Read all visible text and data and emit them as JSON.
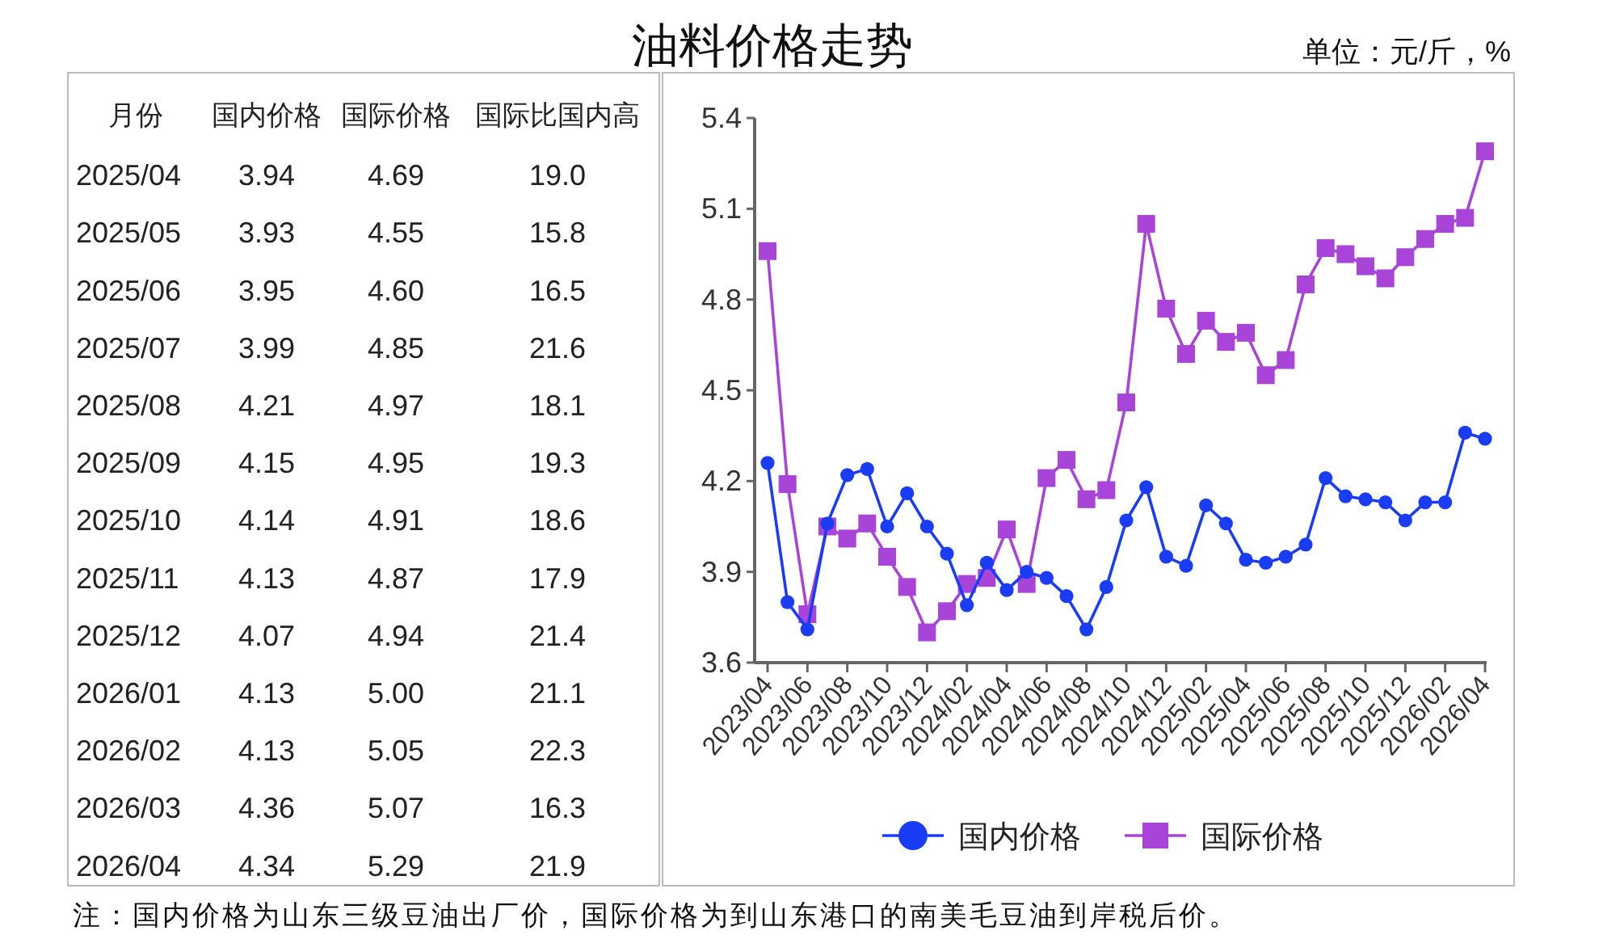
{
  "chart_data": [
    {
      "type": "other",
      "xlabel": "月份",
      "categories": [
        "2025/04",
        "2025/05",
        "2025/06",
        "2025/07",
        "2025/08",
        "2025/09",
        "2025/10",
        "2025/11",
        "2025/12",
        "2026/01",
        "2026/02",
        "2026/03",
        "2026/04"
      ],
      "series": [
        {
          "name": "国内价格",
          "values": [
            3.94,
            3.93,
            3.95,
            3.99,
            4.21,
            4.15,
            4.14,
            4.13,
            4.07,
            4.13,
            4.13,
            4.36,
            4.34
          ],
          "value_labels": [
            "3.94",
            "3.93",
            "3.95",
            "3.99",
            "4.21",
            "4.15",
            "4.14",
            "4.13",
            "4.07",
            "4.13",
            "4.13",
            "4.36",
            "4.34"
          ]
        },
        {
          "name": "国际价格",
          "values": [
            4.69,
            4.55,
            4.6,
            4.85,
            4.97,
            4.95,
            4.91,
            4.87,
            4.94,
            5.0,
            5.05,
            5.07,
            5.29
          ],
          "value_labels": [
            "4.69",
            "4.55",
            "4.60",
            "4.85",
            "4.97",
            "4.95",
            "4.91",
            "4.87",
            "4.94",
            "5.00",
            "5.05",
            "5.07",
            "5.29"
          ]
        },
        {
          "name": "国际比国内高",
          "values": [
            19.0,
            15.8,
            16.5,
            21.6,
            18.1,
            19.3,
            18.6,
            17.9,
            21.4,
            21.1,
            22.3,
            16.3,
            21.9
          ],
          "value_labels": [
            "19.0",
            "15.8",
            "16.5",
            "21.6",
            "18.1",
            "19.3",
            "18.6",
            "17.9",
            "21.4",
            "21.1",
            "22.3",
            "16.3",
            "21.9"
          ]
        }
      ]
    },
    {
      "type": "line",
      "title": "油料价格走势",
      "subtitle": "单位：元/斤，%",
      "annotations": [
        "注：国内价格为山东三级豆油出厂价，国际价格为到山东港口的南美毛豆油到岸税后价。"
      ],
      "categories": [
        "2023/04",
        null,
        "2023/06",
        null,
        "2023/08",
        null,
        "2023/10",
        null,
        "2023/12",
        null,
        "2024/02",
        null,
        "2024/04",
        null,
        "2024/06",
        null,
        "2024/08",
        null,
        "2024/10",
        null,
        "2024/12",
        null,
        "2025/02",
        null,
        "2025/04",
        null,
        "2025/06",
        null,
        "2025/08",
        null,
        "2025/10",
        null,
        "2025/12",
        null,
        "2026/02",
        null,
        "2026/04"
      ],
      "ylim": [
        3.6,
        5.4
      ],
      "yticks": [
        3.6,
        3.9,
        4.2,
        4.5,
        4.8,
        5.1,
        5.4
      ],
      "grid": false,
      "legend": "bottom",
      "series": [
        {
          "name": "国内价格",
          "color": "#1a3cf5",
          "marker": "circle",
          "values": [
            4.26,
            3.8,
            3.71,
            4.06,
            4.22,
            4.24,
            4.05,
            4.16,
            4.05,
            3.96,
            3.79,
            3.93,
            3.84,
            3.9,
            3.88,
            3.82,
            3.71,
            3.85,
            4.07,
            4.18,
            3.95,
            3.92,
            4.12,
            4.06,
            3.94,
            3.93,
            3.95,
            3.99,
            4.21,
            4.15,
            4.14,
            4.13,
            4.07,
            4.13,
            4.13,
            4.36,
            4.34
          ]
        },
        {
          "name": "国际价格",
          "color": "#a844d8",
          "marker": "square",
          "values": [
            4.96,
            4.19,
            3.76,
            4.05,
            4.01,
            4.06,
            3.95,
            3.85,
            3.7,
            3.77,
            3.86,
            3.88,
            4.04,
            3.86,
            4.21,
            4.27,
            4.14,
            4.17,
            4.46,
            5.05,
            4.77,
            4.62,
            4.73,
            4.66,
            4.69,
            4.55,
            4.6,
            4.85,
            4.97,
            4.95,
            4.91,
            4.87,
            4.94,
            5.0,
            5.05,
            5.07,
            5.29
          ]
        }
      ]
    }
  ]
}
